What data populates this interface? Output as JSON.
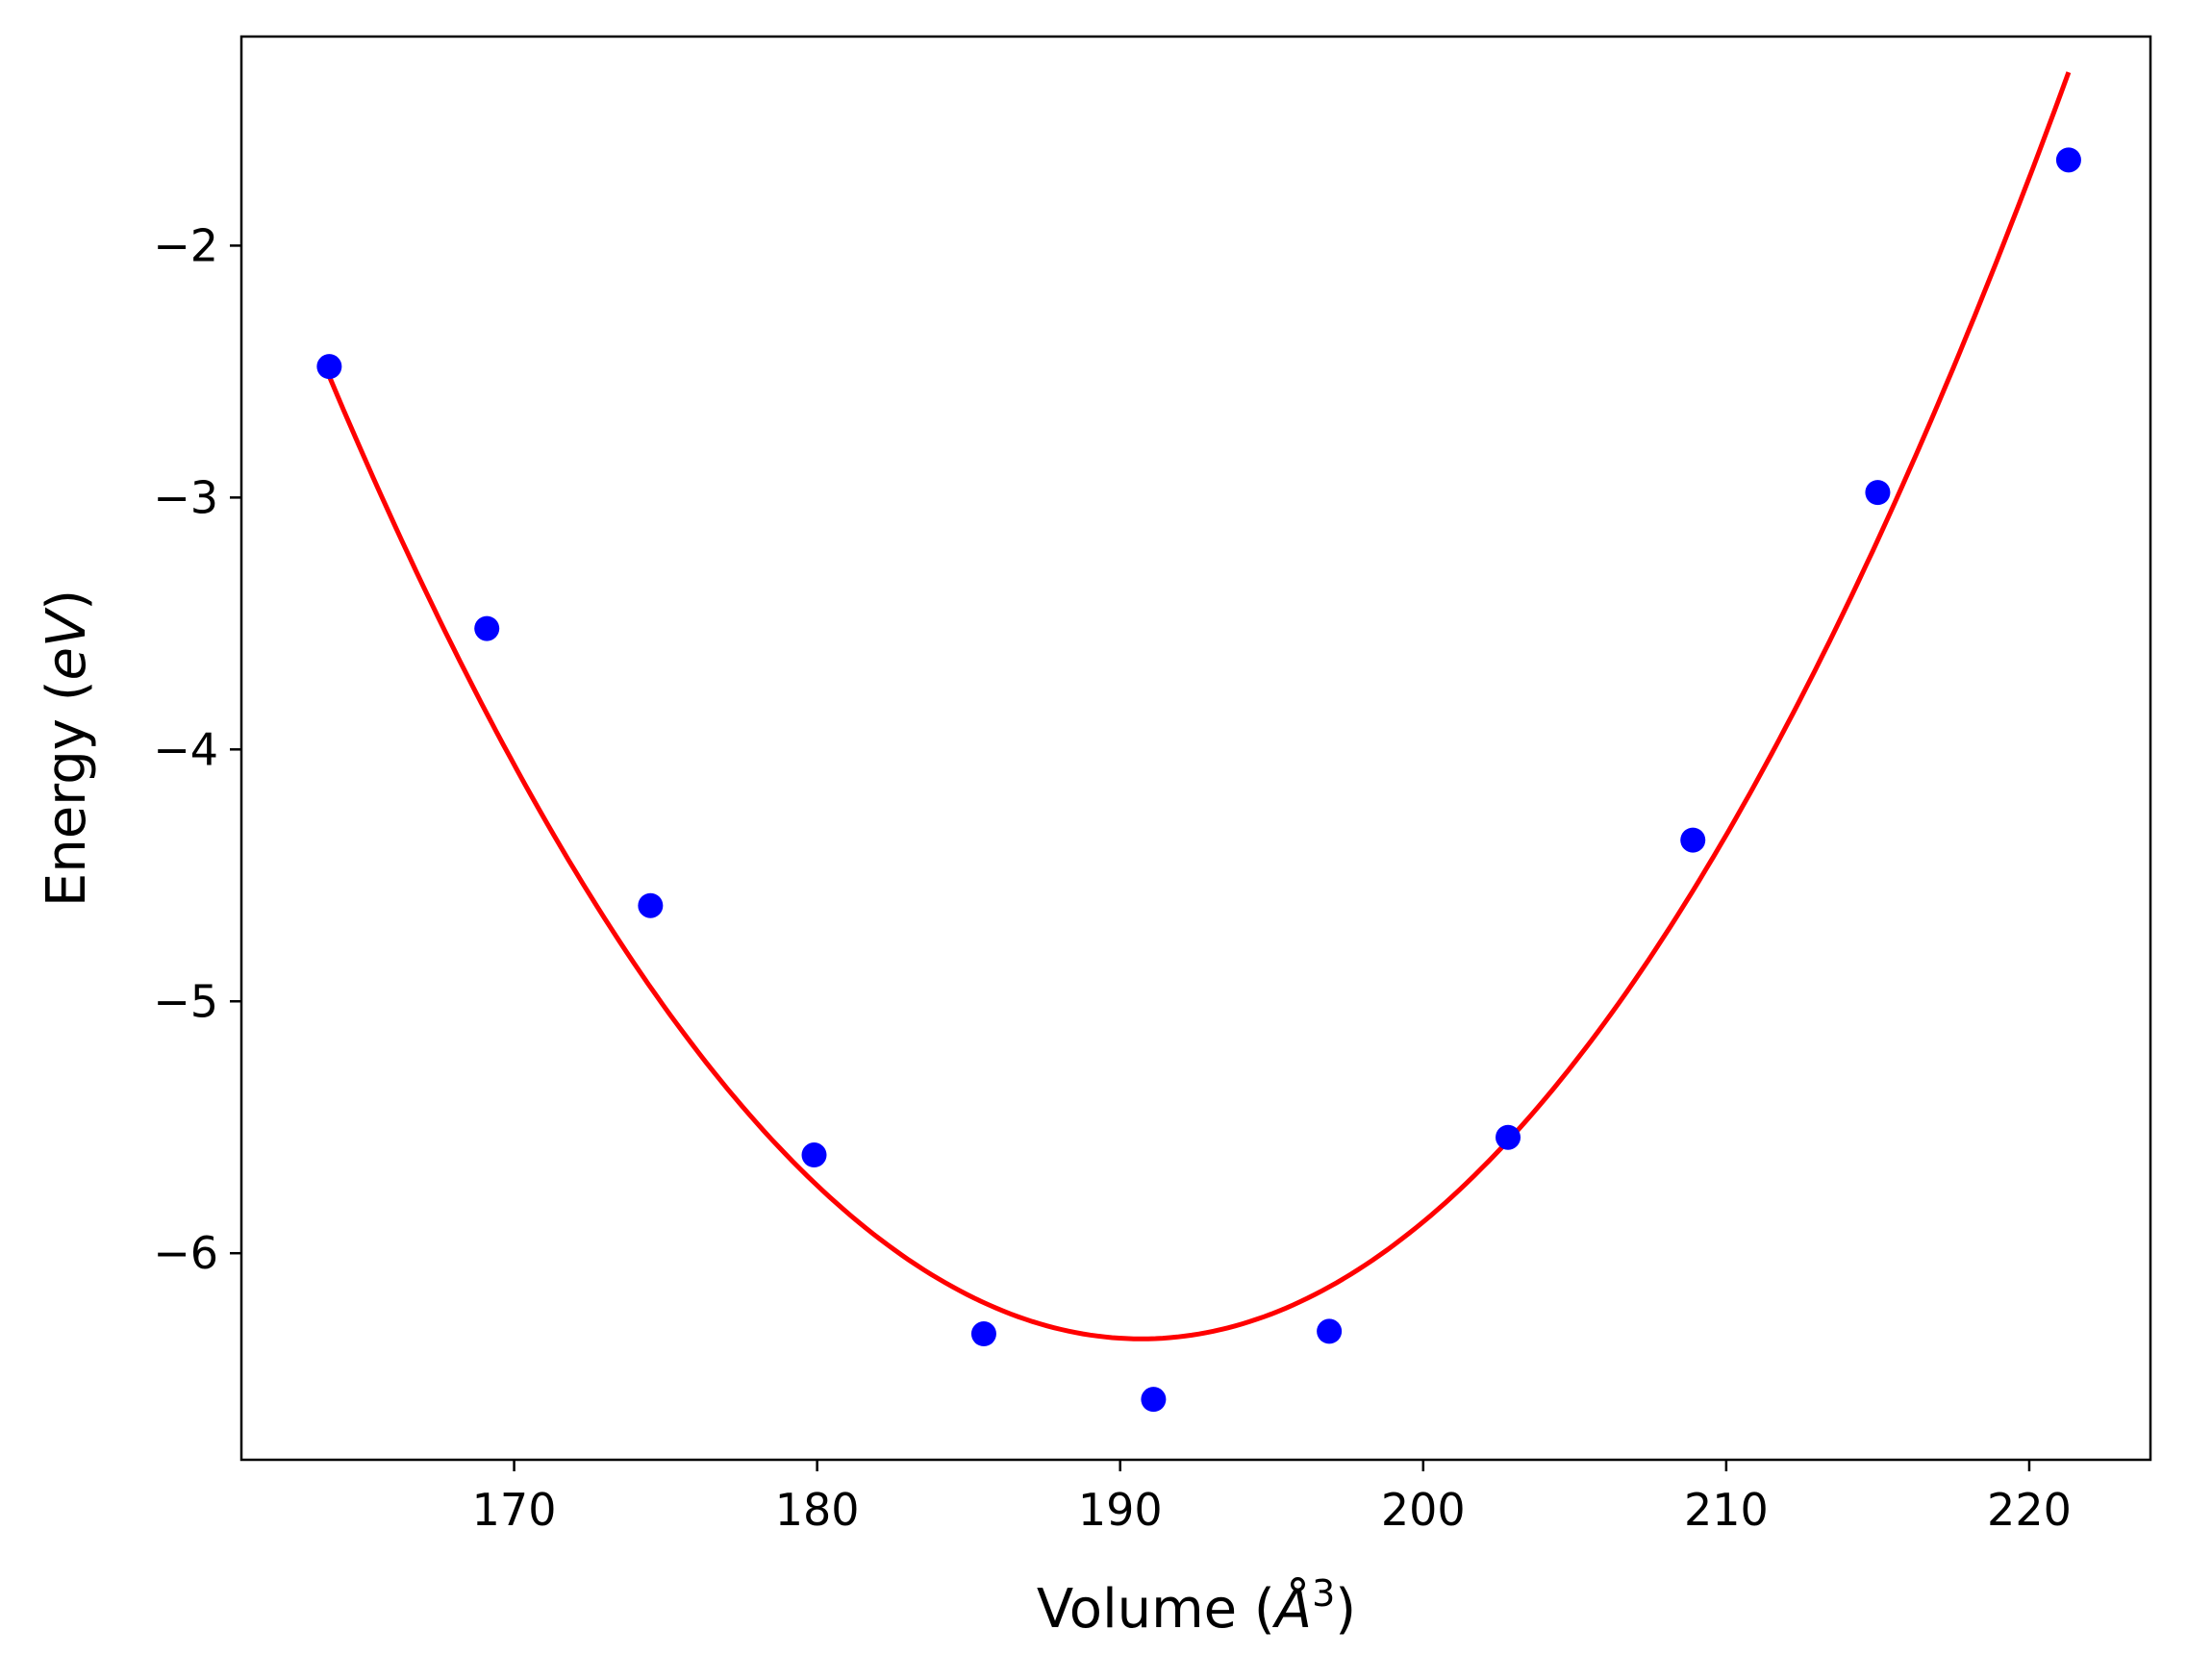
{
  "chart_data": {
    "type": "scatter",
    "xlabel": {
      "prefix": "Volume (",
      "symbol": "Å",
      "sup": "3",
      "suffix": ")"
    },
    "ylabel": {
      "prefix": "Energy (",
      "unit": "eV",
      "suffix": ")"
    },
    "xlim": [
      161,
      224
    ],
    "ylim": [
      -6.82,
      -1.17
    ],
    "xticks": [
      170,
      180,
      190,
      200,
      210,
      220
    ],
    "xtick_labels": [
      "170",
      "180",
      "190",
      "200",
      "210",
      "220"
    ],
    "yticks": [
      -6,
      -5,
      -4,
      -3,
      -2
    ],
    "ytick_labels": [
      "−6",
      "−5",
      "−4",
      "−3",
      "−2"
    ],
    "grid": false,
    "series": [
      {
        "kind": "points",
        "color": "#0000ff",
        "x": [
          163.9,
          169.1,
          174.5,
          179.9,
          185.5,
          191.1,
          196.9,
          202.8,
          208.9,
          215.0,
          221.3
        ],
        "y": [
          -2.48,
          -3.52,
          -4.62,
          -5.61,
          -6.32,
          -6.58,
          -6.31,
          -5.54,
          -4.36,
          -2.98,
          -1.66
        ]
      },
      {
        "kind": "fit",
        "color": "#ff0000",
        "x_range": [
          163.9,
          221.3
        ],
        "vertex": [
          190.7,
          -6.34
        ],
        "curvature_left": 0.00532,
        "curvature_right": 0.00537
      }
    ]
  }
}
